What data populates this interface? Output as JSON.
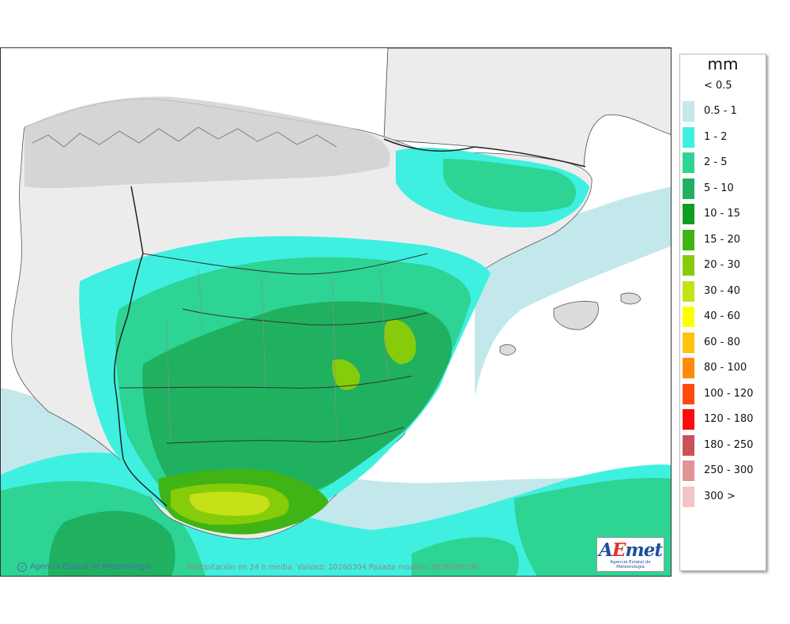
{
  "map": {
    "credit": "Agencia Estatal de Meteorología",
    "caption": "Precipitación en 24 h media. Validez: 20260304 Pasada modelo: 2026030200",
    "colors": {
      "sea": "#ffffff",
      "land_dry": "#ececec",
      "relief_dark": "#8c8c8c",
      "border": "#222222",
      "province_line": "#8d8d8d"
    }
  },
  "logo": {
    "word_a": "A",
    "word_e": "E",
    "word_rest": "met",
    "subtitle": "Agencia Estatal de Meteorología"
  },
  "legend": {
    "unit": "mm",
    "below_label": "< 0.5",
    "items": [
      {
        "label": "0.5 - 1",
        "color": "#c2e8ec"
      },
      {
        "label": "1 - 2",
        "color": "#3ff0e0"
      },
      {
        "label": "2 - 5",
        "color": "#2dd493"
      },
      {
        "label": "5 - 10",
        "color": "#1fb060"
      },
      {
        "label": "10 - 15",
        "color": "#0f9c22"
      },
      {
        "label": "15 - 20",
        "color": "#3fb414"
      },
      {
        "label": "20 - 30",
        "color": "#86cc0a"
      },
      {
        "label": "30 - 40",
        "color": "#c6e117"
      },
      {
        "label": "40 - 60",
        "color": "#ffff00"
      },
      {
        "label": "60 - 80",
        "color": "#ffc20f"
      },
      {
        "label": "80 - 100",
        "color": "#ff8a0b"
      },
      {
        "label": "100 - 120",
        "color": "#ff4a0e"
      },
      {
        "label": "120 - 180",
        "color": "#ff0a0a"
      },
      {
        "label": "180 - 250",
        "color": "#c85258"
      },
      {
        "label": "250 - 300",
        "color": "#df9494"
      },
      {
        "label": "300 >",
        "color": "#f3c4c4"
      }
    ]
  }
}
